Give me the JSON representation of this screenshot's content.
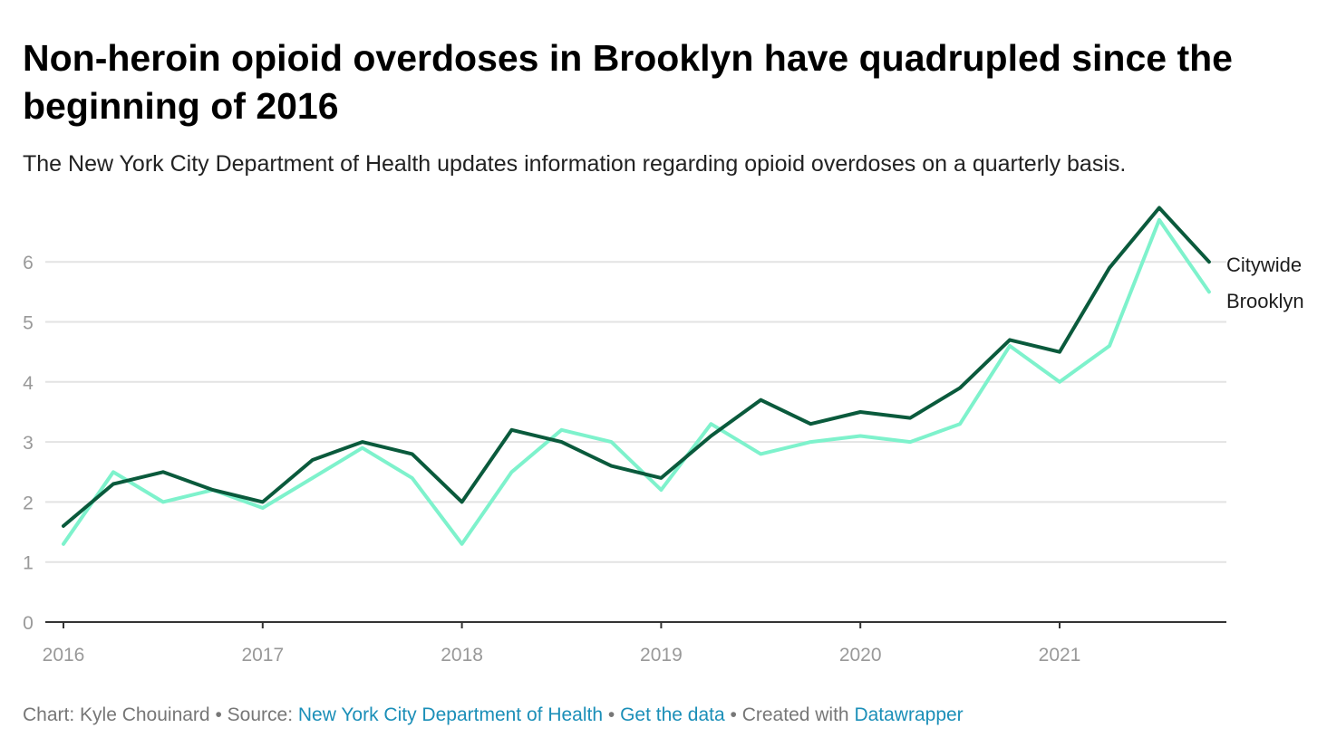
{
  "header": {
    "title": "Non-heroin opioid overdoses in Brooklyn have quadrupled since the beginning of 2016",
    "subtitle": "The New York City Department of Health updates information regarding opioid overdoses on a quarterly basis."
  },
  "footer": {
    "chart_prefix": "Chart: Kyle Chouinard",
    "source_prefix": "Source:",
    "source_link": "New York City Department of Health",
    "data_link": "Get the data",
    "created_prefix": "Created with",
    "tool_link": "Datawrapper",
    "separator": "•"
  },
  "chart_data": {
    "type": "line",
    "title": "Non-heroin opioid overdoses in Brooklyn have quadrupled since the beginning of 2016",
    "xlabel": "",
    "ylabel": "",
    "x": [
      2016.0,
      2016.25,
      2016.5,
      2016.75,
      2017.0,
      2017.25,
      2017.5,
      2017.75,
      2018.0,
      2018.25,
      2018.5,
      2018.75,
      2019.0,
      2019.25,
      2019.5,
      2019.75,
      2020.0,
      2020.25,
      2020.5,
      2020.75,
      2021.0,
      2021.25,
      2021.5,
      2021.75
    ],
    "xlim": [
      2016.0,
      2021.85
    ],
    "ylim": [
      0,
      7
    ],
    "x_ticks": [
      2016,
      2017,
      2018,
      2019,
      2020,
      2021
    ],
    "x_tick_labels": [
      "2016",
      "2017",
      "2018",
      "2019",
      "2020",
      "2021"
    ],
    "y_ticks": [
      0,
      1,
      2,
      3,
      4,
      5,
      6
    ],
    "y_tick_labels": [
      "0",
      "1",
      "2",
      "3",
      "4",
      "5",
      "6"
    ],
    "grid": true,
    "legend": "direct labels at right end of lines",
    "series": [
      {
        "name": "Citywide",
        "color": "#0a5a3c",
        "values": [
          1.6,
          2.3,
          2.5,
          2.2,
          2.0,
          2.7,
          3.0,
          2.8,
          2.0,
          3.2,
          3.0,
          2.6,
          2.4,
          3.1,
          3.7,
          3.3,
          3.5,
          3.4,
          3.9,
          4.7,
          4.5,
          5.9,
          6.9,
          6.0
        ]
      },
      {
        "name": "Brooklyn",
        "color": "#7ef2cc",
        "values": [
          1.3,
          2.5,
          2.0,
          2.2,
          1.9,
          2.4,
          2.9,
          2.4,
          1.3,
          2.5,
          3.2,
          3.0,
          2.2,
          3.3,
          2.8,
          3.0,
          3.1,
          3.0,
          3.3,
          4.6,
          4.0,
          4.6,
          6.7,
          5.5
        ]
      }
    ]
  }
}
